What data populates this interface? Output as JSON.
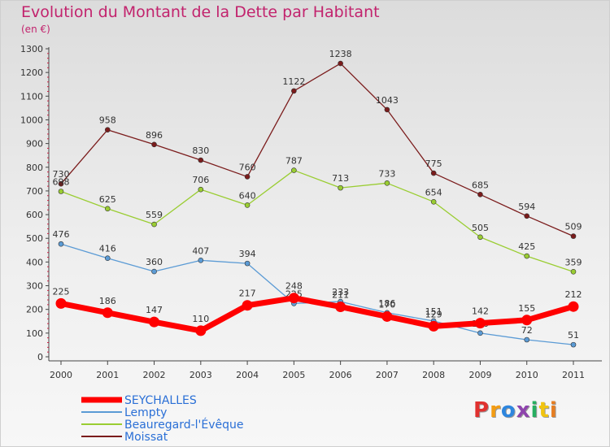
{
  "header": {
    "title": "Evolution du Montant de la Dette par Habitant",
    "unit": "(en €)"
  },
  "logo": {
    "text": "Proxiti",
    "letter_colors": [
      "#e0312f",
      "#f39c12",
      "#2e86de",
      "#8e44ad",
      "#27ae60",
      "#f1c40f",
      "#e67e22"
    ]
  },
  "chart_data": {
    "type": "line",
    "title": "Evolution du Montant de la Dette par Habitant",
    "subtitle": "(en €)",
    "xlabel": "",
    "ylabel": "",
    "x": [
      "2000",
      "2001",
      "2002",
      "2003",
      "2004",
      "2005",
      "2006",
      "2007",
      "2008",
      "2009",
      "2010",
      "2011"
    ],
    "ylim": [
      0,
      1300
    ],
    "yticks": [
      0,
      100,
      200,
      300,
      400,
      500,
      600,
      700,
      800,
      900,
      1000,
      1100,
      1200,
      1300
    ],
    "grid": false,
    "legend_position": "bottom-left",
    "series": [
      {
        "name": "SEYCHALLES",
        "color": "#ff0000",
        "values": [
          225,
          186,
          147,
          110,
          217,
          248,
          211,
          170,
          129,
          142,
          155,
          212
        ]
      },
      {
        "name": "Lempty",
        "color": "#5b9bd5",
        "values": [
          476,
          416,
          360,
          407,
          394,
          225,
          233,
          186,
          151,
          100,
          72,
          51
        ]
      },
      {
        "name": "Beauregard-l'Évêque",
        "color": "#9acd32",
        "values": [
          698,
          625,
          559,
          706,
          640,
          787,
          713,
          733,
          654,
          505,
          425,
          359
        ]
      },
      {
        "name": "Moissat",
        "color": "#7b1c1c",
        "values": [
          730,
          958,
          896,
          830,
          760,
          1122,
          1238,
          1043,
          775,
          685,
          594,
          509
        ]
      }
    ]
  }
}
